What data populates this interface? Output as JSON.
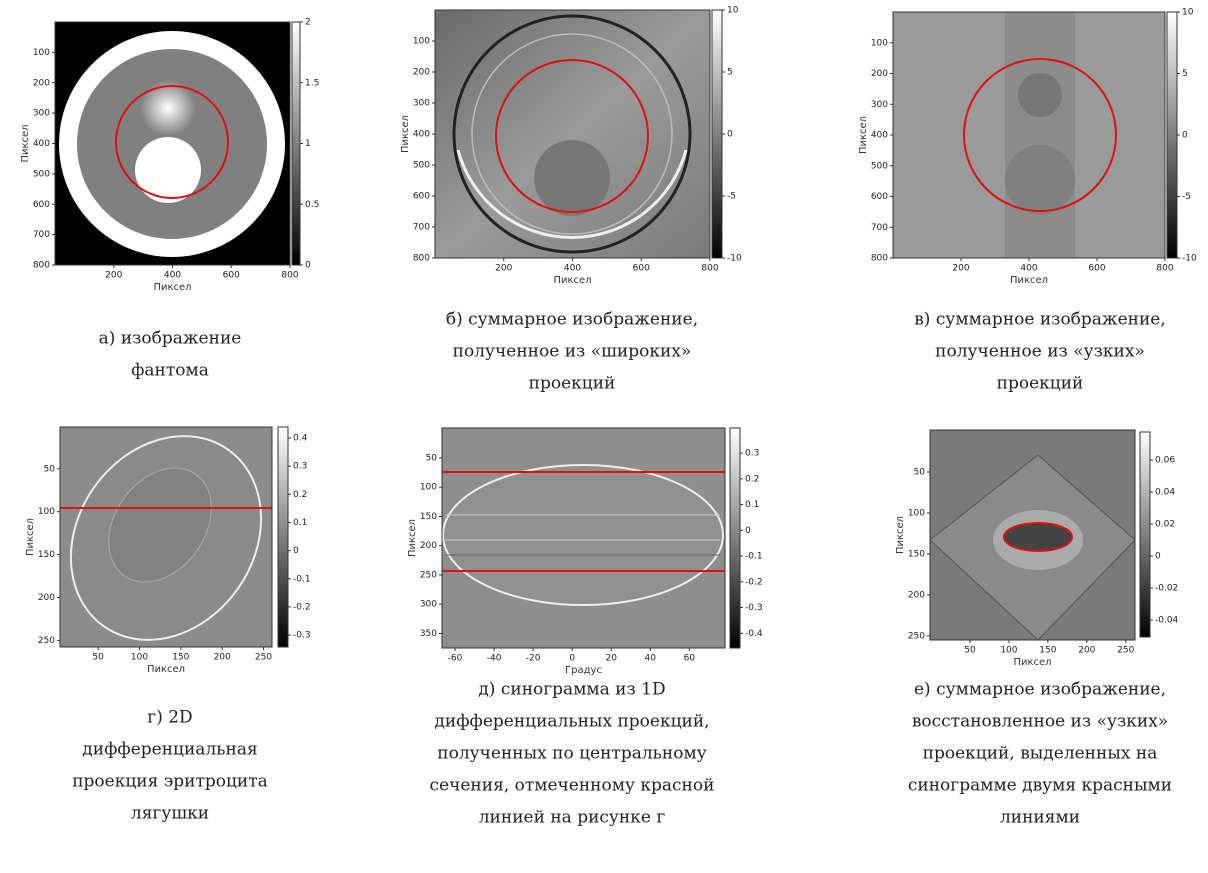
{
  "panels": [
    {
      "caption": [
        "а) изображение",
        "фантома"
      ],
      "x_label": "Пиксел",
      "y_label": "Пиксел",
      "xticks": [
        "200",
        "400",
        "600",
        "800"
      ],
      "yticks": [
        "100",
        "200",
        "300",
        "400",
        "500",
        "600",
        "700",
        "800"
      ],
      "colorbar_ticks": [
        "2",
        "1.5",
        "1",
        "0.5",
        "0"
      ]
    },
    {
      "caption": [
        "б) суммарное изображение,",
        "полученное из «широких»",
        "проекций"
      ],
      "x_label": "Пиксел",
      "y_label": "Пиксел",
      "xticks": [
        "200",
        "400",
        "600",
        "800"
      ],
      "yticks": [
        "100",
        "200",
        "300",
        "400",
        "500",
        "600",
        "700",
        "800"
      ],
      "colorbar_ticks": [
        "10",
        "5",
        "0",
        "-5",
        "-10"
      ]
    },
    {
      "caption": [
        "в) суммарное изображение,",
        "полученное из «узких»",
        "проекций"
      ],
      "x_label": "Пиксел",
      "y_label": "Пиксел",
      "xticks": [
        "200",
        "400",
        "600",
        "800"
      ],
      "yticks": [
        "100",
        "200",
        "300",
        "400",
        "500",
        "600",
        "700",
        "800"
      ],
      "colorbar_ticks": [
        "10",
        "5",
        "0",
        "-5",
        "-10"
      ]
    },
    {
      "caption": [
        "г) 2D",
        "дифференциальная",
        "проекция эритроцита",
        "лягушки"
      ],
      "x_label": "Пиксел",
      "y_label": "Пиксел",
      "xticks": [
        "50",
        "100",
        "150",
        "200",
        "250"
      ],
      "yticks": [
        "50",
        "100",
        "150",
        "200",
        "250"
      ],
      "colorbar_ticks": [
        "0.4",
        "0.3",
        "0.2",
        "0.1",
        "0",
        "-0.1",
        "-0.2",
        "-0.3"
      ]
    },
    {
      "caption": [
        "д) синограмма из 1D",
        "дифференциальных проекций,",
        "полученных по центральному",
        "сечения, отмеченному красной",
        "линией на рисунке г"
      ],
      "x_label": "Градус",
      "y_label": "Пиксел",
      "xticks": [
        "-60",
        "-40",
        "-20",
        "0",
        "20",
        "40",
        "60"
      ],
      "yticks": [
        "50",
        "100",
        "150",
        "200",
        "250",
        "300",
        "350"
      ],
      "colorbar_ticks": [
        "0.3",
        "0.2",
        "0.1",
        "0",
        "-0.1",
        "-0.2",
        "-0.3",
        "-0.4"
      ]
    },
    {
      "caption": [
        "е) суммарное изображение,",
        "восстановленное из «узких»",
        "проекций, выделенных на",
        "синограмме двумя красными",
        "линиями"
      ],
      "x_label": "Пиксел",
      "y_label": "Пиксел",
      "xticks": [
        "50",
        "100",
        "150",
        "200",
        "250"
      ],
      "yticks": [
        "50",
        "100",
        "150",
        "200",
        "250"
      ],
      "colorbar_ticks": [
        "0.06",
        "0.04",
        "0.02",
        "0",
        "-0.02",
        "-0.04"
      ]
    }
  ]
}
